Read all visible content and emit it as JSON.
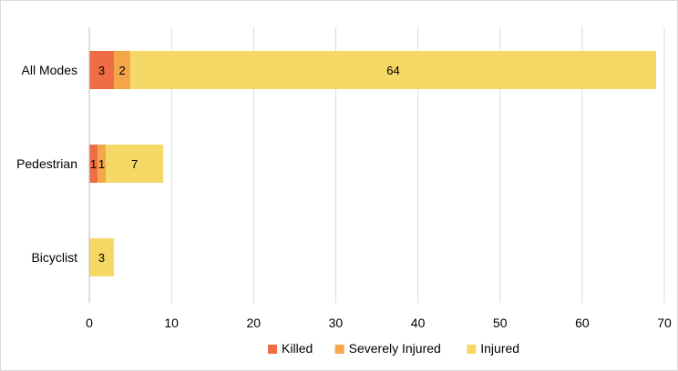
{
  "chart_data": {
    "type": "bar",
    "orientation": "horizontal",
    "stacked": true,
    "categories": [
      "All Modes",
      "Pedestrian",
      "Bicyclist"
    ],
    "series": [
      {
        "name": "Killed",
        "color": "#ef6c45",
        "values": [
          3,
          1,
          0
        ]
      },
      {
        "name": "Severely Injured",
        "color": "#f4a64b",
        "values": [
          2,
          1,
          0
        ]
      },
      {
        "name": "Injured",
        "color": "#f5d866",
        "values": [
          64,
          7,
          3
        ]
      }
    ],
    "xlim": [
      0,
      70
    ],
    "xticks": [
      "0",
      "10",
      "20",
      "30",
      "40",
      "50",
      "60",
      "70"
    ],
    "grid": "vertical",
    "legend_position": "bottom"
  }
}
